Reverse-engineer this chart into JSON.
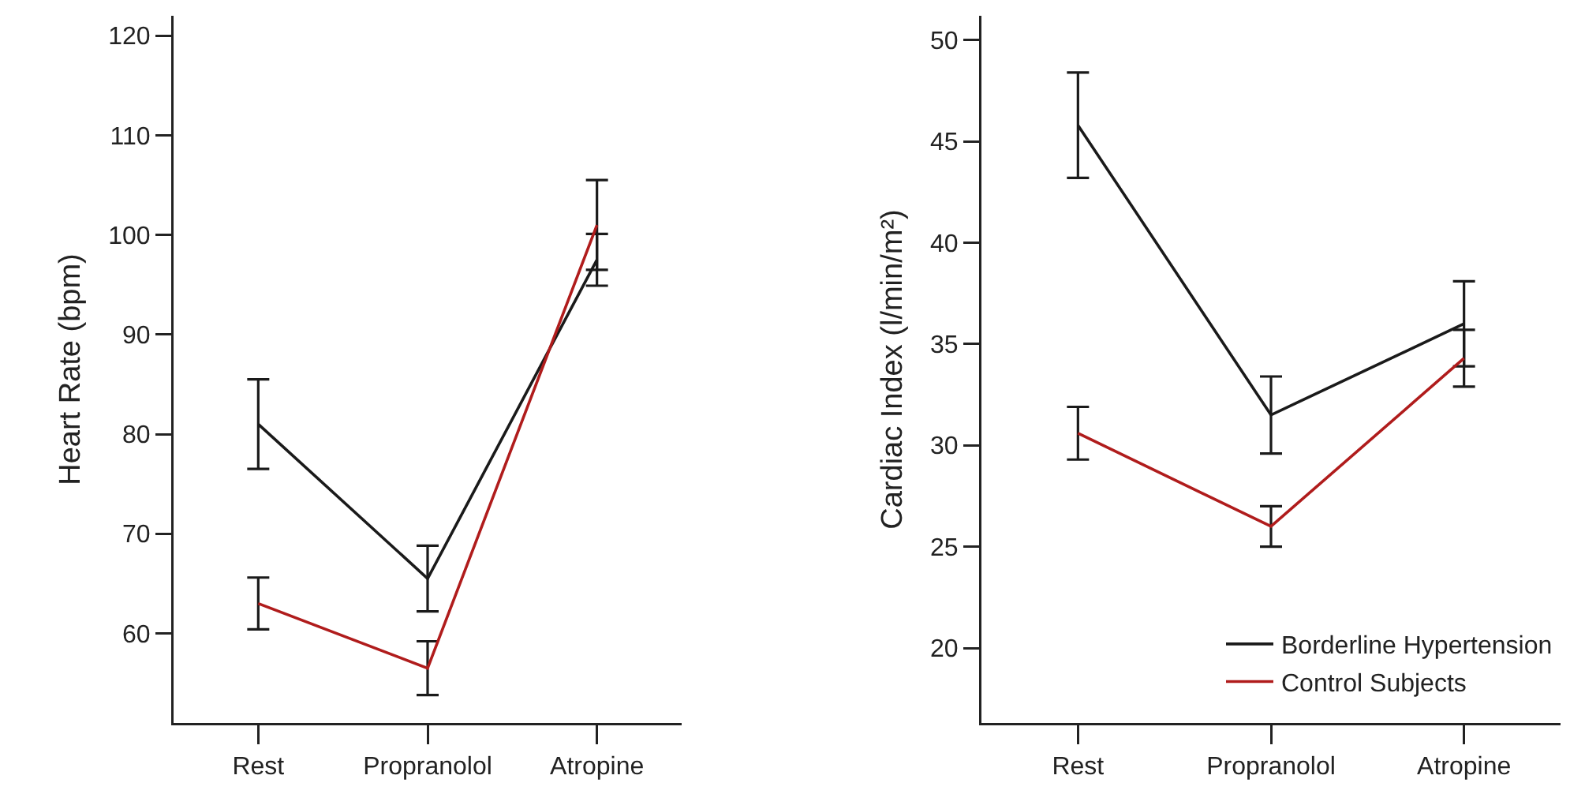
{
  "chart_data": [
    {
      "type": "line",
      "ylabel": "Heart Rate (bpm)",
      "categories": [
        "Rest",
        "Propranolol",
        "Atropine"
      ],
      "ylim": [
        51,
        122
      ],
      "yticks": [
        60,
        70,
        80,
        90,
        100,
        110,
        120
      ],
      "grid": false,
      "marker": "none",
      "line_style": "solid",
      "legend": false,
      "series": [
        {
          "color": "#1a1a1a",
          "values": [
            81,
            65.5,
            97.5
          ],
          "errors": [
            4.5,
            3.3,
            2.6
          ]
        },
        {
          "color": "#b01c1c",
          "values": [
            63,
            56.5,
            101
          ],
          "errors": [
            2.6,
            2.7,
            4.5
          ]
        }
      ]
    },
    {
      "type": "line",
      "ylabel": "Cardiac Index (l/min/m²)",
      "categories": [
        "Rest",
        "Propranolol",
        "Atropine"
      ],
      "ylim": [
        16.3,
        51.2
      ],
      "yticks": [
        20,
        25,
        30,
        35,
        40,
        45,
        50
      ],
      "grid": false,
      "marker": "none",
      "line_style": "solid",
      "legend": "bottom right",
      "series": [
        {
          "name": "Borderline Hypertension",
          "color": "#1a1a1a",
          "values": [
            45.8,
            31.5,
            36
          ],
          "errors": [
            2.6,
            1.9,
            2.1
          ]
        },
        {
          "name": "Control Subjects",
          "color": "#b01c1c",
          "values": [
            30.6,
            26,
            34.3
          ],
          "errors": [
            1.3,
            1,
            1.4
          ]
        }
      ]
    }
  ]
}
